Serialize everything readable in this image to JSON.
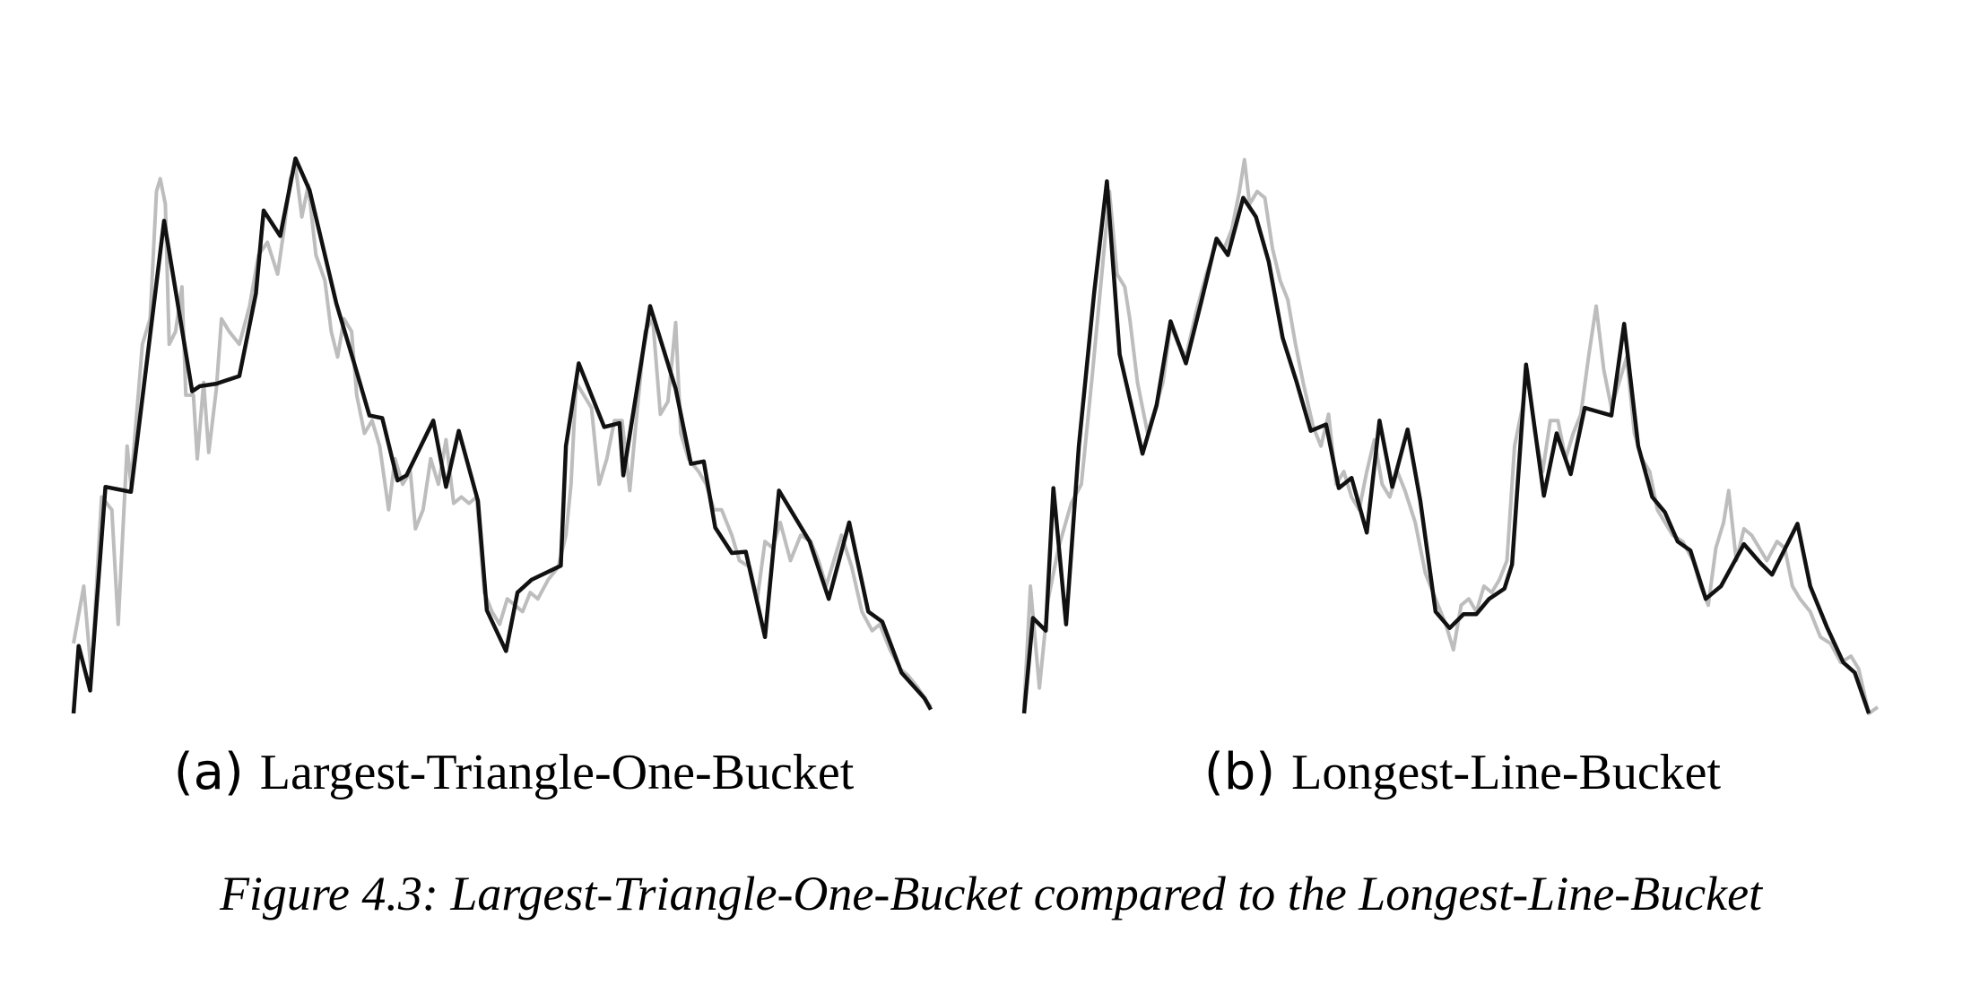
{
  "figure_caption": "Figure 4.3: Largest-Triangle-One-Bucket compared to the Longest-Line-Bucket",
  "chart_data": [
    {
      "type": "line",
      "label": "(a)",
      "title": "Largest-Triangle-One-Bucket",
      "xlim": [
        0,
        672
      ],
      "ylim": [
        0,
        440
      ],
      "series": [
        {
          "color": "#bdbdbd",
          "x": [
            0,
            8,
            14,
            22,
            30,
            35,
            42,
            45,
            54,
            60,
            65,
            68,
            72,
            75,
            80,
            85,
            88,
            94,
            97,
            102,
            106,
            112,
            116,
            122,
            130,
            138,
            145,
            152,
            160,
            165,
            170,
            174,
            179,
            184,
            190,
            197,
            202,
            207,
            212,
            218,
            222,
            228,
            234,
            240,
            247,
            252,
            258,
            264,
            268,
            274,
            280,
            286,
            292,
            298,
            304,
            310,
            316,
            322,
            328,
            334,
            340,
            346,
            352,
            358,
            364,
            372,
            380,
            386,
            390,
            394,
            400,
            406,
            412,
            418,
            424,
            430,
            436,
            442,
            448,
            454,
            460,
            466,
            472,
            476,
            482,
            490,
            496,
            502,
            508,
            516,
            522,
            530,
            536,
            542,
            548,
            554,
            562,
            570,
            578,
            584,
            590,
            596,
            602,
            610,
            618,
            626,
            632,
            640,
            648,
            654,
            662,
            672
          ],
          "values": [
            55,
            100,
            30,
            170,
            160,
            70,
            210,
            180,
            290,
            310,
            410,
            420,
            400,
            290,
            300,
            335,
            250,
            250,
            200,
            260,
            205,
            255,
            310,
            300,
            290,
            320,
            360,
            370,
            345,
            380,
            420,
            430,
            390,
            415,
            360,
            340,
            300,
            280,
            310,
            300,
            250,
            220,
            230,
            210,
            160,
            200,
            180,
            190,
            145,
            160,
            200,
            180,
            215,
            165,
            170,
            165,
            170,
            95,
            80,
            70,
            90,
            85,
            80,
            95,
            90,
            105,
            115,
            140,
            180,
            260,
            250,
            240,
            180,
            200,
            230,
            230,
            175,
            240,
            300,
            310,
            235,
            245,
            307,
            220,
            200,
            190,
            180,
            160,
            160,
            140,
            120,
            115,
            90,
            135,
            130,
            150,
            120,
            140,
            135,
            120,
            100,
            120,
            140,
            115,
            80,
            65,
            70,
            50,
            35,
            30,
            20,
            5
          ]
        },
        {
          "color": "#111111",
          "x": [
            0,
            4,
            13,
            25,
            45,
            71,
            93,
            99,
            112,
            130,
            143,
            149,
            162,
            174,
            185,
            206,
            220,
            232,
            242,
            254,
            261,
            282,
            292,
            302,
            317,
            324,
            339,
            348,
            359,
            382,
            386,
            396,
            416,
            428,
            431,
            452,
            472,
            484,
            494,
            503,
            516,
            527,
            542,
            553,
            577,
            592,
            608,
            623,
            634,
            649,
            667,
            672
          ],
          "values": [
            0,
            53,
            18,
            178,
            174,
            387,
            253,
            257,
            259,
            265,
            330,
            395,
            375,
            436,
            411,
            322,
            275,
            234,
            232,
            183,
            187,
            230,
            178,
            222,
            167,
            81,
            49,
            95,
            105,
            116,
            210,
            275,
            225,
            228,
            187,
            320,
            255,
            196,
            198,
            146,
            126,
            127,
            60,
            175,
            135,
            90,
            150,
            80,
            72,
            32,
            12,
            3
          ]
        }
      ]
    },
    {
      "type": "line",
      "label": "(b)",
      "title": "Longest-Line-Bucket",
      "xlim": [
        0,
        670
      ],
      "ylim": [
        0,
        440
      ],
      "series": [
        {
          "color": "#bdbdbd",
          "x": [
            0,
            5,
            12,
            19,
            27,
            37,
            45,
            53,
            61,
            67,
            73,
            79,
            83,
            89,
            97,
            103,
            109,
            115,
            121,
            127,
            135,
            143,
            151,
            157,
            163,
            169,
            173,
            177,
            183,
            189,
            195,
            201,
            207,
            213,
            219,
            227,
            233,
            239,
            245,
            251,
            257,
            263,
            269,
            275,
            281,
            287,
            293,
            299,
            307,
            315,
            323,
            331,
            337,
            343,
            349,
            355,
            361,
            367,
            373,
            379,
            385,
            391,
            395,
            401,
            407,
            413,
            419,
            425,
            431,
            437,
            443,
            449,
            455,
            461,
            467,
            473,
            479,
            485,
            491,
            497,
            503,
            509,
            517,
            525,
            531,
            537,
            543,
            549,
            553,
            559,
            565,
            571,
            577,
            583,
            591,
            597,
            603,
            609,
            617,
            625,
            633,
            641,
            649,
            655,
            663,
            670
          ],
          "values": [
            5,
            100,
            20,
            90,
            130,
            165,
            180,
            260,
            345,
            410,
            345,
            335,
            310,
            260,
            220,
            240,
            260,
            305,
            290,
            280,
            315,
            345,
            370,
            365,
            380,
            410,
            435,
            400,
            410,
            405,
            365,
            340,
            325,
            290,
            260,
            225,
            210,
            235,
            180,
            190,
            170,
            160,
            190,
            215,
            180,
            170,
            190,
            175,
            150,
            110,
            90,
            70,
            50,
            85,
            90,
            80,
            100,
            95,
            105,
            120,
            210,
            240,
            270,
            220,
            190,
            230,
            230,
            200,
            220,
            235,
            280,
            320,
            270,
            240,
            260,
            280,
            220,
            200,
            190,
            160,
            150,
            140,
            135,
            120,
            100,
            85,
            130,
            150,
            175,
            120,
            145,
            140,
            130,
            120,
            135,
            130,
            100,
            90,
            80,
            60,
            55,
            40,
            45,
            35,
            0,
            5
          ]
        },
        {
          "color": "#111111",
          "x": [
            0,
            7,
            17,
            23,
            33,
            43,
            55,
            65,
            75,
            93,
            104,
            115,
            127,
            139,
            151,
            160,
            172,
            182,
            192,
            203,
            214,
            225,
            237,
            247,
            257,
            269,
            279,
            289,
            301,
            311,
            323,
            334,
            345,
            355,
            365,
            377,
            383,
            394,
            408,
            418,
            429,
            440,
            461,
            471,
            482,
            493,
            503,
            513,
            523,
            535,
            547,
            565,
            578,
            587,
            607,
            617,
            630,
            643,
            652,
            663
          ],
          "values": [
            0,
            75,
            65,
            177,
            70,
            210,
            330,
            418,
            282,
            204,
            242,
            308,
            275,
            323,
            373,
            360,
            405,
            390,
            355,
            295,
            260,
            222,
            227,
            177,
            185,
            142,
            230,
            178,
            223,
            167,
            80,
            67,
            78,
            78,
            90,
            98,
            117,
            274,
            171,
            220,
            188,
            240,
            234,
            306,
            210,
            170,
            158,
            135,
            128,
            90,
            100,
            133,
            118,
            109,
            149,
            100,
            68,
            40,
            32,
            0
          ]
        }
      ]
    }
  ]
}
